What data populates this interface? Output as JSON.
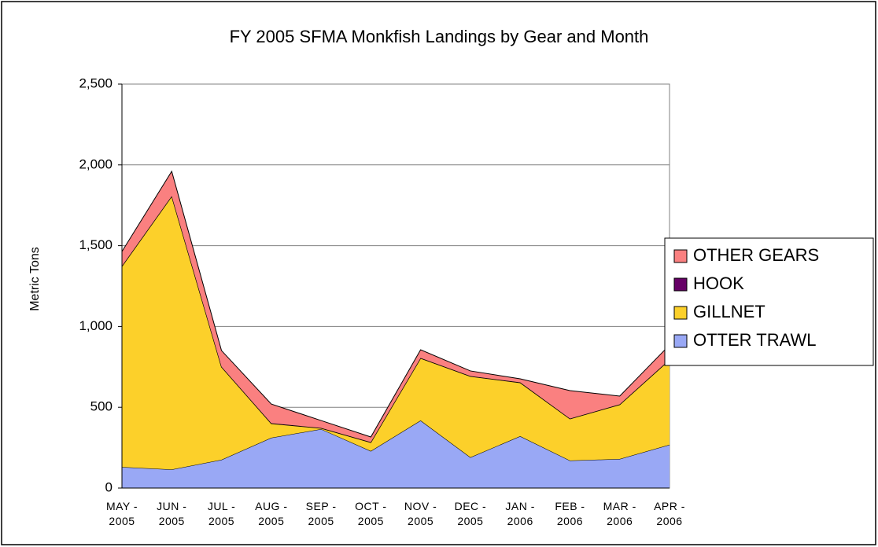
{
  "chart_data": {
    "type": "stacked_area",
    "title": "FY 2005 SFMA Monkfish Landings by Gear and Month",
    "y_label": "Metric Tons",
    "categories": [
      "MAY - 2005",
      "JUN - 2005",
      "JUL - 2005",
      "AUG - 2005",
      "SEP - 2005",
      "OCT - 2005",
      "NOV - 2005",
      "DEC - 2005",
      "JAN - 2006",
      "FEB - 2006",
      "MAR - 2006",
      "APR - 2006"
    ],
    "series": [
      {
        "name": "OTTER TRAWL",
        "color": "#99a8f5",
        "values": [
          130,
          115,
          175,
          311,
          365,
          229,
          418,
          190,
          321,
          170,
          180,
          268
        ]
      },
      {
        "name": "GILLNET",
        "color": "#fcd02a",
        "values": [
          1242,
          1690,
          574,
          88,
          5,
          53,
          385,
          501,
          331,
          258,
          336,
          525
        ]
      },
      {
        "name": "HOOK",
        "color": "#660066",
        "values": [
          2,
          2,
          2,
          2,
          2,
          2,
          2,
          2,
          2,
          2,
          2,
          2
        ]
      },
      {
        "name": "OTHER GEARS",
        "color": "#fa8080",
        "values": [
          90,
          153,
          100,
          119,
          46,
          32,
          51,
          32,
          22,
          173,
          51,
          90
        ]
      }
    ],
    "ylim": [
      0,
      2500
    ],
    "yticks": [
      0,
      500,
      {
        "value": 1000,
        "label": "1,000"
      },
      {
        "value": 1500,
        "label": "1,500"
      },
      {
        "value": 2000,
        "label": "2,000"
      },
      {
        "value": 2500,
        "label": "2,500"
      }
    ],
    "grid": true,
    "legend": "right"
  }
}
